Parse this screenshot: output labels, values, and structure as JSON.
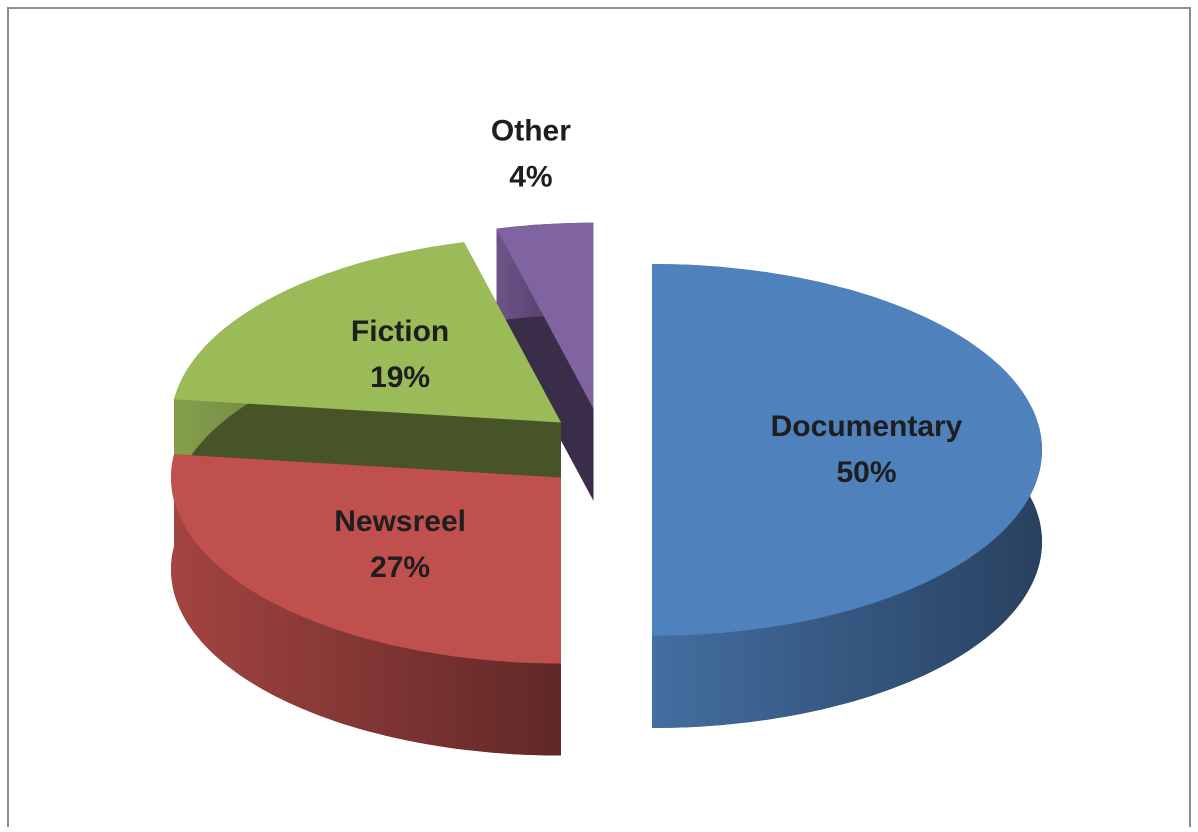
{
  "chart_data": {
    "type": "pie",
    "categories": [
      "Documentary",
      "Newsreel",
      "Fiction",
      "Other"
    ],
    "values": [
      50,
      27,
      19,
      4
    ],
    "value_labels": [
      "50%",
      "27%",
      "19%",
      "4%"
    ],
    "colors": [
      "#4f81bd",
      "#c0504d",
      "#9bbb59",
      "#8064a2"
    ]
  }
}
